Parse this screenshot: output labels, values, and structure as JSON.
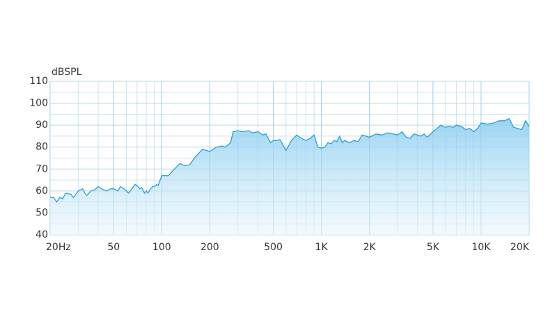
{
  "chart_data": {
    "type": "line",
    "y_label": "dBSPL",
    "xscale": "log",
    "grid": true,
    "color": "#2a9fd6",
    "xlim": [
      20,
      20000
    ],
    "ylim": [
      40,
      110
    ],
    "xticks": [
      {
        "value": 20,
        "label": "20Hz"
      },
      50,
      100,
      200,
      500,
      {
        "value": 1000,
        "label": "1K"
      },
      {
        "value": 2000,
        "label": "2K"
      },
      {
        "value": 5000,
        "label": "5K"
      },
      {
        "value": 10000,
        "label": "10K"
      },
      {
        "value": 20000,
        "label": "20K"
      }
    ],
    "yticks": [
      40,
      50,
      60,
      70,
      80,
      90,
      100,
      110
    ],
    "x": [
      20,
      21,
      22,
      23,
      24,
      25,
      27,
      28,
      30,
      32,
      33,
      34,
      36,
      38,
      40,
      42,
      45,
      48,
      50,
      53,
      55,
      58,
      60,
      62,
      65,
      68,
      70,
      73,
      75,
      78,
      80,
      82,
      85,
      88,
      90,
      93,
      95,
      100,
      105,
      110,
      120,
      130,
      140,
      150,
      160,
      180,
      200,
      220,
      240,
      250,
      270,
      280,
      300,
      320,
      350,
      370,
      400,
      430,
      450,
      480,
      500,
      530,
      550,
      600,
      650,
      700,
      750,
      800,
      850,
      900,
      950,
      1000,
      1050,
      1100,
      1150,
      1200,
      1250,
      1300,
      1350,
      1400,
      1500,
      1600,
      1700,
      1800,
      1900,
      2000,
      2200,
      2400,
      2600,
      2800,
      3000,
      3200,
      3400,
      3600,
      3800,
      4000,
      4200,
      4400,
      4600,
      5000,
      5300,
      5600,
      6000,
      6300,
      6700,
      7000,
      7500,
      8000,
      8500,
      9000,
      9500,
      10000,
      11000,
      12000,
      13000,
      14000,
      15000,
      16000,
      17000,
      18000,
      19000,
      20000
    ],
    "values": [
      57,
      57,
      55,
      57,
      56.5,
      59,
      58.5,
      57,
      60,
      61,
      59,
      58,
      60,
      60.5,
      62,
      61,
      60,
      61,
      61,
      60,
      62,
      61,
      60,
      59,
      61,
      63,
      62.5,
      61,
      61.5,
      59,
      60,
      59,
      61,
      62,
      62,
      63,
      62.5,
      67,
      67,
      67,
      70,
      72.5,
      71.5,
      72,
      75,
      79,
      78,
      80,
      80.5,
      80,
      82,
      87,
      87.5,
      87,
      87.5,
      86.5,
      87,
      85.5,
      86,
      82,
      83,
      83,
      83.5,
      78.5,
      83,
      85.5,
      84,
      83,
      84,
      85.5,
      80,
      79.5,
      80,
      82,
      81.5,
      83,
      82.5,
      85,
      82,
      83,
      82,
      83,
      82.5,
      85.5,
      85,
      84.5,
      86,
      85.5,
      86.5,
      86,
      85.5,
      87,
      84.5,
      84,
      86,
      85.5,
      85,
      86,
      84.5,
      87,
      88.5,
      90,
      89,
      89.5,
      89,
      90,
      89.5,
      88,
      88.5,
      87,
      88.5,
      91,
      90.5,
      91,
      92,
      92,
      93,
      89,
      88.5,
      88,
      92,
      89.5
    ]
  }
}
